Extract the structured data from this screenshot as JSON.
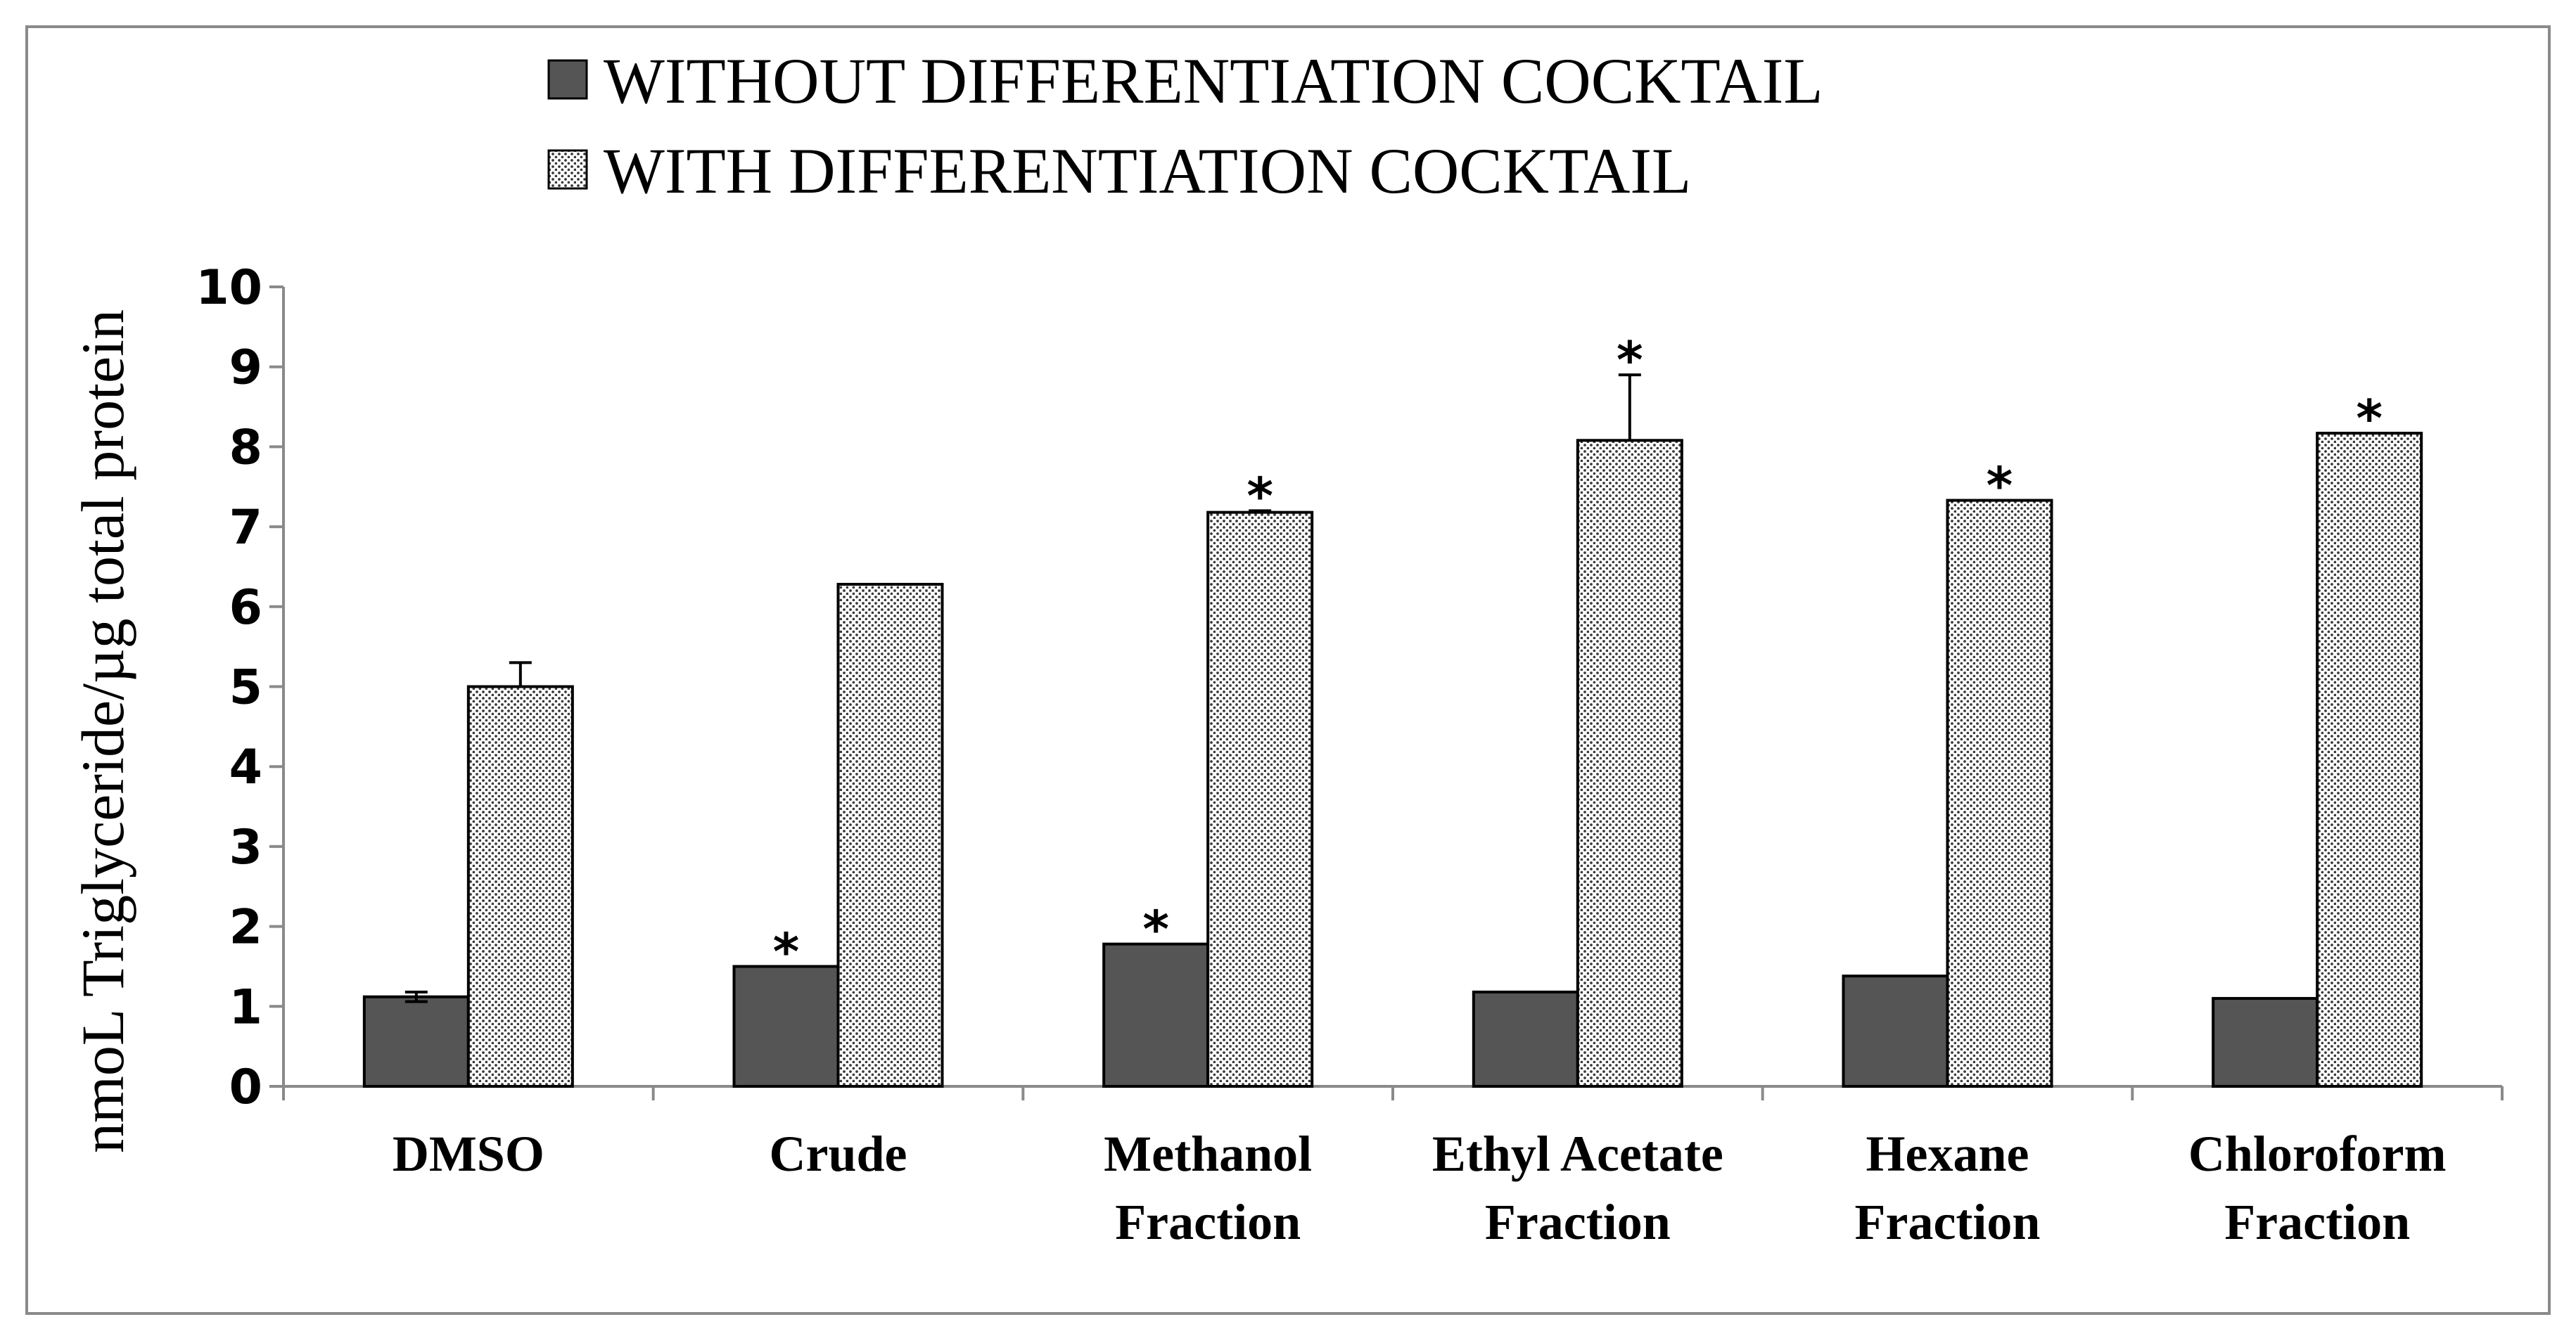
{
  "chart_data": {
    "type": "bar",
    "title": "",
    "xlabel": "",
    "ylabel": "nmoL Triglyceride/µg total protein",
    "ylim": [
      0,
      10
    ],
    "yticks": [
      0,
      1,
      2,
      3,
      4,
      5,
      6,
      7,
      8,
      9,
      10
    ],
    "categories": [
      [
        "DMSO"
      ],
      [
        "Crude"
      ],
      [
        "Methanol",
        "Fraction"
      ],
      [
        "Ethyl Acetate",
        "Fraction"
      ],
      [
        "Hexane",
        "Fraction"
      ],
      [
        "Chloroform",
        "Fraction"
      ]
    ],
    "legend_position": "top",
    "significance_marker": "*",
    "series": [
      {
        "name": "WITHOUT DIFFERENTIATION COCKTAIL",
        "fill": "solid",
        "color": "#555555",
        "values": [
          1.12,
          1.5,
          1.78,
          1.18,
          1.38,
          1.1
        ],
        "errors": [
          0.06,
          0,
          0,
          0,
          0,
          0
        ],
        "significant": [
          false,
          true,
          true,
          false,
          false,
          false
        ]
      },
      {
        "name": "WITH DIFFERENTIATION COCKTAIL",
        "fill": "dotted",
        "color": "#ffffff",
        "values": [
          5.0,
          6.28,
          7.18,
          8.08,
          7.33,
          8.17
        ],
        "errors": [
          0.3,
          0,
          0.02,
          0.82,
          0,
          0
        ],
        "significant": [
          false,
          false,
          true,
          true,
          true,
          true
        ]
      }
    ]
  }
}
